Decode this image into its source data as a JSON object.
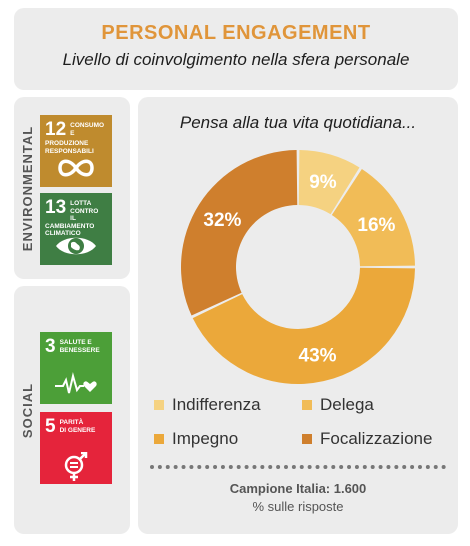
{
  "header": {
    "title": "PERSONAL ENGAGEMENT",
    "subtitle": "Livello di coinvolgimento nella sfera personale"
  },
  "sidebar": {
    "environmental_label": "ENVIRONMENTAL",
    "social_label": "SOCIAL",
    "goals": [
      {
        "number": "12",
        "line1": "CONSUMO E",
        "line2": "PRODUZIONE",
        "line3": "RESPONSABILI",
        "color": "#bf8b2e",
        "icon": "infinity-icon"
      },
      {
        "number": "13",
        "line1": "LOTTA CONTRO",
        "line2": "IL CAMBIAMENTO",
        "line3": "CLIMATICO",
        "color": "#3f7e44",
        "icon": "eye-earth-icon"
      },
      {
        "number": "3",
        "line1": "SALUTE E",
        "line2": "BENESSERE",
        "line3": "",
        "color": "#4c9f38",
        "icon": "heartbeat-icon"
      },
      {
        "number": "5",
        "line1": "PARITÀ",
        "line2": "DI GENERE",
        "line3": "",
        "color": "#e5243b",
        "icon": "gender-equality-icon"
      }
    ]
  },
  "chart_data": {
    "type": "pie",
    "title": "Pensa alla tua vita quotidiana...",
    "categories": [
      "Indifferenza",
      "Delega",
      "Impegno",
      "Focalizzazione"
    ],
    "values": [
      9,
      16,
      43,
      32
    ],
    "labels": [
      "9%",
      "16%",
      "43%",
      "32%"
    ],
    "colors": [
      "#f5d281",
      "#f1bc57",
      "#eba83a",
      "#cf7f2d"
    ],
    "legend_position": "bottom"
  },
  "footer": {
    "sample": "Campione Italia: 1.600",
    "note": "% sulle risposte"
  }
}
